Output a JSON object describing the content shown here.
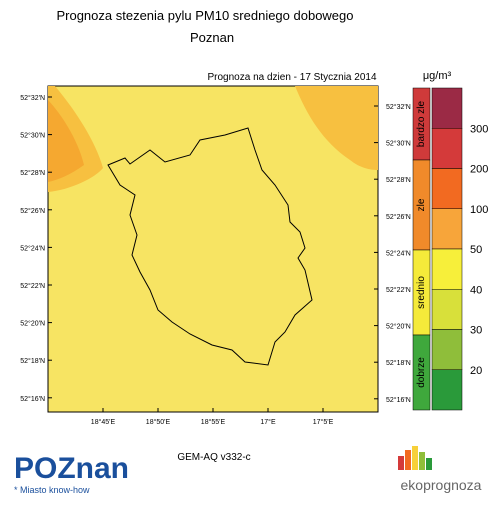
{
  "header": {
    "title": "Prognoza stezenia pylu PM10 sredniego dobowego",
    "subtitle": "Poznan"
  },
  "map": {
    "date_label": "Prognoza na dzien -  17 Stycznia 2014",
    "lat_labels": [
      "52°32'N",
      "52°30'N",
      "52°28'N",
      "52°26'N",
      "52°24'N",
      "52°22'N",
      "52°20'N",
      "52°18'N",
      "52°16'N"
    ],
    "lon_labels": [
      "18°45'E",
      "18°50'E",
      "18°55'E",
      "17°E",
      "17°5'E"
    ],
    "model": "GEM-AQ v332-c"
  },
  "legend": {
    "unit": "μg/m³",
    "classes": [
      {
        "label": "bardzo zle",
        "color": "#cf3a3a"
      },
      {
        "label": "zle",
        "color": "#f08a2a"
      },
      {
        "label": "srednio",
        "color": "#f5ea3a"
      },
      {
        "label": "dobrze",
        "color": "#3fa83c"
      }
    ],
    "level_colors": [
      "#9b2a45",
      "#d43a3a",
      "#f26a21",
      "#f7a53a",
      "#f7ef3a",
      "#d8e03a",
      "#8fbe3a",
      "#2a9a3a"
    ],
    "ticks": [
      300,
      200,
      100,
      50,
      40,
      30,
      20
    ]
  },
  "footer": {
    "logo": "POZnan",
    "slogan": "* Miasto know-how",
    "brand": "ekoprognoza"
  }
}
